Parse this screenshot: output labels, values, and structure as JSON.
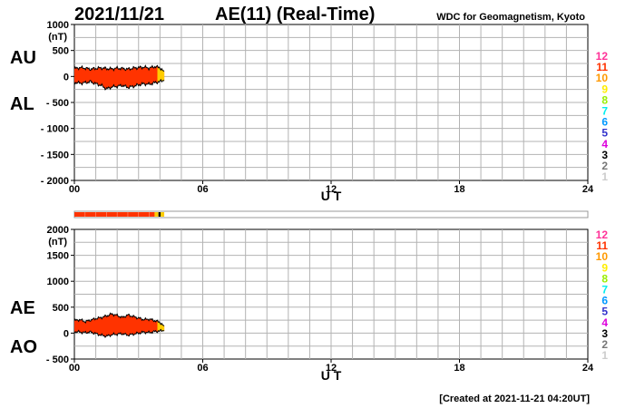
{
  "header": {
    "date": "2021/11/21",
    "title": "AE(11) (Real-Time)",
    "source": "WDC for Geomagnetism, Kyoto"
  },
  "footer": {
    "created": "[Created at 2021-11-21 04:20UT]"
  },
  "colors": {
    "fill_main": "#ff3300",
    "fill_recent": "#ffcc00",
    "fill_latest": "#ccff00",
    "outline": "#000000",
    "grid": "#b3b3b3",
    "bar_border": "#999999"
  },
  "legend": {
    "items": [
      {
        "label": "12",
        "color": "#ff3399"
      },
      {
        "label": "11",
        "color": "#ff3300"
      },
      {
        "label": "10",
        "color": "#ff9900"
      },
      {
        "label": "9",
        "color": "#ffee00"
      },
      {
        "label": "8",
        "color": "#99ee00"
      },
      {
        "label": "7",
        "color": "#00eeee"
      },
      {
        "label": "6",
        "color": "#0099ff"
      },
      {
        "label": "5",
        "color": "#3333cc"
      },
      {
        "label": "4",
        "color": "#dd00dd"
      },
      {
        "label": "3",
        "color": "#000000"
      },
      {
        "label": "2",
        "color": "#777777"
      },
      {
        "label": "1",
        "color": "#cccccc"
      }
    ]
  },
  "stationbar": {
    "segments": [
      {
        "start": 0.0,
        "end": 3.75,
        "color": "#ff3300"
      },
      {
        "start": 3.75,
        "end": 3.93,
        "color": "#ffcc00"
      },
      {
        "start": 3.93,
        "end": 4.03,
        "color": "#000000"
      },
      {
        "start": 4.03,
        "end": 4.2,
        "color": "#ffcc00"
      }
    ]
  },
  "chart_data": [
    {
      "type": "area",
      "name": "AU-AL",
      "upper_label": "AU",
      "lower_label": "AL",
      "unit": "(nT)",
      "xlabel": "U T",
      "xlim": [
        0,
        24
      ],
      "ylim": [
        -2000,
        1000
      ],
      "xticks": [
        {
          "v": 0,
          "l": "00"
        },
        {
          "v": 6,
          "l": "06"
        },
        {
          "v": 12,
          "l": "12"
        },
        {
          "v": 18,
          "l": "18"
        },
        {
          "v": 24,
          "l": "24"
        }
      ],
      "yticks": [
        {
          "v": 1000,
          "l": "1000"
        },
        {
          "v": 500,
          "l": "500"
        },
        {
          "v": 0,
          "l": "0"
        },
        {
          "v": -500,
          "l": "- 500"
        },
        {
          "v": -1000,
          "l": "- 1000"
        },
        {
          "v": -1500,
          "l": "- 1500"
        },
        {
          "v": -2000,
          "l": "- 2000"
        }
      ],
      "x": [
        0,
        0.25,
        0.5,
        0.75,
        1.0,
        1.25,
        1.5,
        1.75,
        2.0,
        2.25,
        2.5,
        2.75,
        3.0,
        3.25,
        3.5,
        3.75,
        4.0,
        4.2
      ],
      "upper": [
        150,
        170,
        160,
        140,
        155,
        165,
        150,
        145,
        160,
        150,
        140,
        160,
        170,
        180,
        160,
        190,
        170,
        80
      ],
      "lower": [
        -110,
        -130,
        -120,
        -100,
        -140,
        -170,
        -240,
        -200,
        -190,
        -170,
        -210,
        -190,
        -160,
        -140,
        -150,
        -120,
        -100,
        -60
      ]
    },
    {
      "type": "area",
      "name": "AE-AO",
      "upper_label": "AE",
      "lower_label": "AO",
      "unit": "(nT)",
      "xlabel": "U T",
      "xlim": [
        0,
        24
      ],
      "ylim": [
        -500,
        2000
      ],
      "xticks": [
        {
          "v": 0,
          "l": "00"
        },
        {
          "v": 6,
          "l": "06"
        },
        {
          "v": 12,
          "l": "12"
        },
        {
          "v": 18,
          "l": "18"
        },
        {
          "v": 24,
          "l": "24"
        }
      ],
      "yticks": [
        {
          "v": 2000,
          "l": "2000"
        },
        {
          "v": 1500,
          "l": "1500"
        },
        {
          "v": 1000,
          "l": "1000"
        },
        {
          "v": 500,
          "l": "500"
        },
        {
          "v": 0,
          "l": "0"
        },
        {
          "v": -500,
          "l": "- 500"
        }
      ],
      "x": [
        0,
        0.25,
        0.5,
        0.75,
        1.0,
        1.25,
        1.5,
        1.75,
        2.0,
        2.25,
        2.5,
        2.75,
        3.0,
        3.25,
        3.5,
        3.75,
        4.0,
        4.2
      ],
      "upper": [
        240,
        260,
        220,
        250,
        280,
        300,
        330,
        370,
        340,
        300,
        350,
        320,
        290,
        260,
        270,
        240,
        210,
        120
      ],
      "lower": [
        30,
        20,
        10,
        20,
        -10,
        -40,
        -60,
        -30,
        -20,
        -10,
        -40,
        -20,
        0,
        20,
        10,
        30,
        40,
        60
      ]
    }
  ]
}
